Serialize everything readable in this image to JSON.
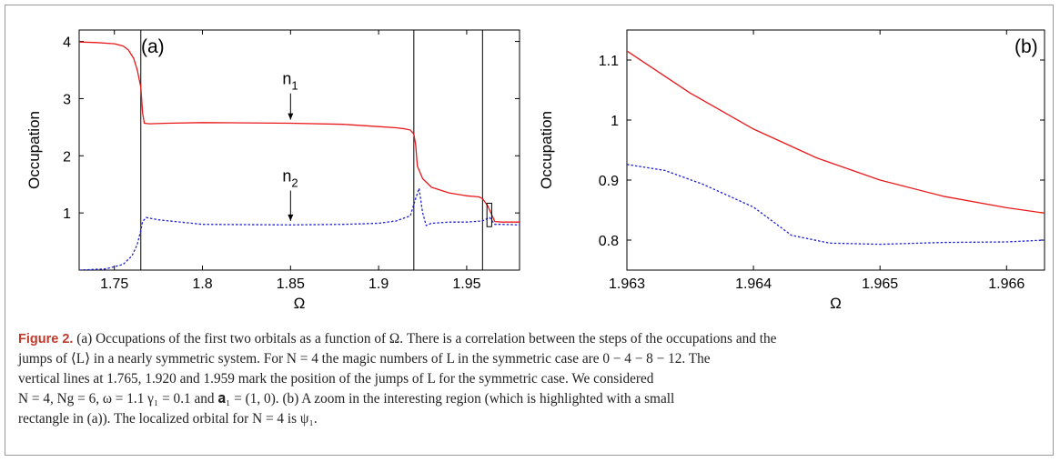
{
  "chart_data": [
    {
      "type": "line",
      "panel_label": "(a)",
      "xlabel": "Ω",
      "ylabel": "Occupation",
      "xlim": [
        1.73,
        1.98
      ],
      "ylim": [
        0,
        4.2
      ],
      "xticks": [
        1.75,
        1.8,
        1.85,
        1.9,
        1.95
      ],
      "xtick_labels": [
        "1.75",
        "1.8",
        "1.85",
        "1.9",
        "1.95"
      ],
      "yticks": [
        1,
        2,
        3,
        4
      ],
      "ytick_labels": [
        "1",
        "2",
        "3",
        "4"
      ],
      "grid": false,
      "series": [
        {
          "name": "n1",
          "color": "#e8191c",
          "style": "solid",
          "x": [
            1.73,
            1.74,
            1.75,
            1.755,
            1.758,
            1.761,
            1.763,
            1.764,
            1.765,
            1.766,
            1.767,
            1.77,
            1.78,
            1.8,
            1.85,
            1.88,
            1.9,
            1.91,
            1.915,
            1.918,
            1.92,
            1.921,
            1.922,
            1.925,
            1.93,
            1.94,
            1.95,
            1.957,
            1.959,
            1.962,
            1.963,
            1.966,
            1.97,
            1.98
          ],
          "y": [
            3.99,
            3.98,
            3.96,
            3.92,
            3.85,
            3.7,
            3.5,
            3.35,
            3.2,
            2.75,
            2.57,
            2.56,
            2.57,
            2.58,
            2.57,
            2.55,
            2.51,
            2.49,
            2.47,
            2.45,
            2.38,
            2.2,
            1.82,
            1.6,
            1.45,
            1.35,
            1.3,
            1.28,
            1.25,
            1.12,
            1.05,
            0.85,
            0.84,
            0.84
          ]
        },
        {
          "name": "n2",
          "color": "#1f1fd6",
          "style": "dashed",
          "x": [
            1.73,
            1.745,
            1.755,
            1.76,
            1.763,
            1.765,
            1.766,
            1.768,
            1.775,
            1.8,
            1.85,
            1.88,
            1.9,
            1.91,
            1.918,
            1.921,
            1.923,
            1.925,
            1.927,
            1.93,
            1.94,
            1.95,
            1.959,
            1.963,
            1.966,
            1.97,
            1.98
          ],
          "y": [
            0.0,
            0.02,
            0.1,
            0.25,
            0.45,
            0.7,
            0.85,
            0.92,
            0.88,
            0.8,
            0.79,
            0.8,
            0.82,
            0.86,
            0.95,
            1.25,
            1.43,
            1.0,
            0.78,
            0.82,
            0.84,
            0.84,
            0.86,
            0.92,
            0.8,
            0.8,
            0.79
          ]
        }
      ],
      "vlines": [
        1.765,
        1.92,
        1.959
      ],
      "annotations": [
        {
          "text": "n",
          "sub": "1",
          "x": 1.85,
          "y": 3.25,
          "arrow_to_y": 2.6
        },
        {
          "text": "n",
          "sub": "2",
          "x": 1.85,
          "y": 1.55,
          "arrow_to_y": 0.83
        }
      ],
      "highlight_box": {
        "x0": 1.9615,
        "x1": 1.9642,
        "y0": 0.76,
        "y1": 1.17
      }
    },
    {
      "type": "line",
      "panel_label": "(b)",
      "xlabel": "Ω",
      "ylabel": "Occupation",
      "xlim": [
        1.963,
        1.9663
      ],
      "ylim": [
        0.75,
        1.15
      ],
      "xticks": [
        1.963,
        1.964,
        1.965,
        1.966
      ],
      "xtick_labels": [
        "1.963",
        "1.964",
        "1.965",
        "1.966"
      ],
      "yticks": [
        0.8,
        0.9,
        1.0,
        1.1
      ],
      "ytick_labels": [
        "0.8",
        "0.9",
        "1",
        "1.1"
      ],
      "grid": false,
      "series": [
        {
          "name": "n1",
          "color": "#e8191c",
          "style": "solid",
          "x": [
            1.963,
            1.9635,
            1.964,
            1.9645,
            1.965,
            1.9655,
            1.966,
            1.9663
          ],
          "y": [
            1.115,
            1.045,
            0.985,
            0.937,
            0.9,
            0.873,
            0.854,
            0.845
          ]
        },
        {
          "name": "n2",
          "color": "#1f1fd6",
          "style": "dashed",
          "x": [
            1.963,
            1.9633,
            1.9636,
            1.964,
            1.9643,
            1.9646,
            1.965,
            1.9655,
            1.966,
            1.9663
          ],
          "y": [
            0.926,
            0.916,
            0.893,
            0.855,
            0.808,
            0.795,
            0.793,
            0.796,
            0.797,
            0.8
          ]
        }
      ]
    }
  ],
  "caption": {
    "label": "Figure 2.",
    "lines": [
      "(a) Occupations of the first two orbitals as a function of Ω. There is a correlation between the steps of the occupations and the",
      "jumps of ⟨L⟩ in a nearly symmetric system. For N = 4 the magic numbers of L in the symmetric case are 0 − 4 − 8 − 12. The",
      "vertical lines at  1.765,  1.920  and  1.959  mark the position of the jumps of L for the symmetric case. We considered",
      "N = 4,  Ng = 6,  ω = 1.1   γ₁ = 0.1  and  𝐚₁ = (1, 0). (b) A zoom in the interesting region (which is highlighted with a small",
      "rectangle in (a)). The localized orbital for N = 4 is ψ₁."
    ]
  }
}
